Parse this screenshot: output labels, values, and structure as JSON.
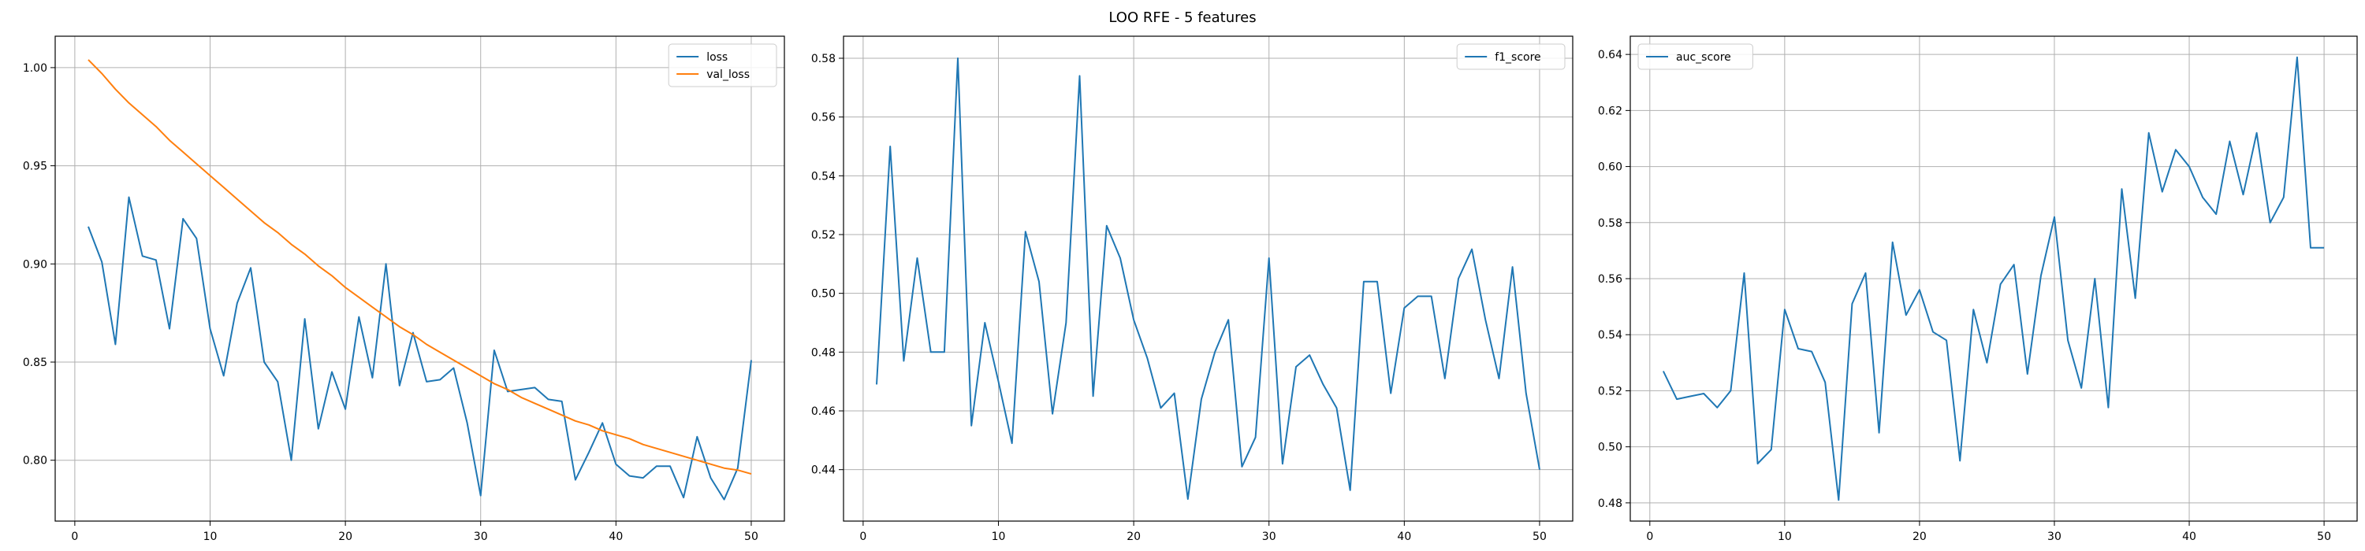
{
  "figure": {
    "title": "LOO RFE - 5 features"
  },
  "chart_data": [
    {
      "type": "line",
      "title": "",
      "xlabel": "",
      "ylabel": "",
      "x": [
        1,
        2,
        3,
        4,
        5,
        6,
        7,
        8,
        9,
        10,
        11,
        12,
        13,
        14,
        15,
        16,
        17,
        18,
        19,
        20,
        21,
        22,
        23,
        24,
        25,
        26,
        27,
        28,
        29,
        30,
        31,
        32,
        33,
        34,
        35,
        36,
        37,
        38,
        39,
        40,
        41,
        42,
        43,
        44,
        45,
        46,
        47,
        48,
        49,
        50
      ],
      "xlim": [
        -1.45,
        52.45
      ],
      "ylim": [
        0.769,
        1.016
      ],
      "xticks": [
        0,
        10,
        20,
        30,
        40,
        50
      ],
      "xtick_labels": [
        "0",
        "10",
        "20",
        "30",
        "40",
        "50"
      ],
      "yticks": [
        0.8,
        0.85,
        0.9,
        0.95,
        1.0
      ],
      "ytick_labels": [
        "0.80",
        "0.85",
        "0.90",
        "0.95",
        "1.00"
      ],
      "grid": true,
      "legend_position": "top-right",
      "series": [
        {
          "name": "loss",
          "color": "#1f77b4",
          "values": [
            0.919,
            0.901,
            0.859,
            0.934,
            0.904,
            0.902,
            0.867,
            0.923,
            0.913,
            0.867,
            0.843,
            0.88,
            0.898,
            0.85,
            0.84,
            0.8,
            0.872,
            0.816,
            0.845,
            0.826,
            0.873,
            0.842,
            0.9,
            0.838,
            0.865,
            0.84,
            0.841,
            0.847,
            0.819,
            0.782,
            0.856,
            0.835,
            0.836,
            0.837,
            0.831,
            0.83,
            0.79,
            0.804,
            0.819,
            0.798,
            0.792,
            0.791,
            0.797,
            0.797,
            0.781,
            0.812,
            0.791,
            0.78,
            0.796,
            0.851
          ]
        },
        {
          "name": "val_loss",
          "color": "#ff7f0e",
          "values": [
            1.004,
            0.997,
            0.989,
            0.982,
            0.976,
            0.97,
            0.963,
            0.957,
            0.951,
            0.945,
            0.939,
            0.933,
            0.927,
            0.921,
            0.916,
            0.91,
            0.905,
            0.899,
            0.894,
            0.888,
            0.883,
            0.878,
            0.873,
            0.868,
            0.864,
            0.859,
            0.855,
            0.851,
            0.847,
            0.843,
            0.839,
            0.836,
            0.832,
            0.829,
            0.826,
            0.823,
            0.82,
            0.818,
            0.815,
            0.813,
            0.811,
            0.808,
            0.806,
            0.804,
            0.802,
            0.8,
            0.798,
            0.796,
            0.795,
            0.793
          ]
        }
      ]
    },
    {
      "type": "line",
      "title": "",
      "xlabel": "",
      "ylabel": "",
      "x": [
        1,
        2,
        3,
        4,
        5,
        6,
        7,
        8,
        9,
        10,
        11,
        12,
        13,
        14,
        15,
        16,
        17,
        18,
        19,
        20,
        21,
        22,
        23,
        24,
        25,
        26,
        27,
        28,
        29,
        30,
        31,
        32,
        33,
        34,
        35,
        36,
        37,
        38,
        39,
        40,
        41,
        42,
        43,
        44,
        45,
        46,
        47,
        48,
        49,
        50
      ],
      "xlim": [
        -1.45,
        52.45
      ],
      "ylim": [
        0.4225,
        0.5875
      ],
      "xticks": [
        0,
        10,
        20,
        30,
        40,
        50
      ],
      "xtick_labels": [
        "0",
        "10",
        "20",
        "30",
        "40",
        "50"
      ],
      "yticks": [
        0.44,
        0.46,
        0.48,
        0.5,
        0.52,
        0.54,
        0.56,
        0.58
      ],
      "ytick_labels": [
        "0.44",
        "0.46",
        "0.48",
        "0.50",
        "0.52",
        "0.54",
        "0.56",
        "0.58"
      ],
      "grid": true,
      "legend_position": "top-right",
      "series": [
        {
          "name": "f1_score",
          "color": "#1f77b4",
          "values": [
            0.469,
            0.55,
            0.477,
            0.512,
            0.48,
            0.48,
            0.58,
            0.455,
            0.49,
            0.47,
            0.449,
            0.521,
            0.504,
            0.459,
            0.49,
            0.574,
            0.465,
            0.523,
            0.512,
            0.491,
            0.478,
            0.461,
            0.466,
            0.43,
            0.464,
            0.48,
            0.491,
            0.441,
            0.451,
            0.512,
            0.442,
            0.475,
            0.479,
            0.469,
            0.461,
            0.433,
            0.504,
            0.504,
            0.466,
            0.495,
            0.499,
            0.499,
            0.471,
            0.505,
            0.515,
            0.491,
            0.471,
            0.509,
            0.466,
            0.44
          ]
        }
      ]
    },
    {
      "type": "line",
      "title": "",
      "xlabel": "",
      "ylabel": "",
      "x": [
        1,
        2,
        3,
        4,
        5,
        6,
        7,
        8,
        9,
        10,
        11,
        12,
        13,
        14,
        15,
        16,
        17,
        18,
        19,
        20,
        21,
        22,
        23,
        24,
        25,
        26,
        27,
        28,
        29,
        30,
        31,
        32,
        33,
        34,
        35,
        36,
        37,
        38,
        39,
        40,
        41,
        42,
        43,
        44,
        45,
        46,
        47,
        48,
        49,
        50
      ],
      "xlim": [
        -1.45,
        52.45
      ],
      "ylim": [
        0.4735,
        0.6465
      ],
      "xticks": [
        0,
        10,
        20,
        30,
        40,
        50
      ],
      "xtick_labels": [
        "0",
        "10",
        "20",
        "30",
        "40",
        "50"
      ],
      "yticks": [
        0.48,
        0.5,
        0.52,
        0.54,
        0.56,
        0.58,
        0.6,
        0.62,
        0.64
      ],
      "ytick_labels": [
        "0.48",
        "0.50",
        "0.52",
        "0.54",
        "0.56",
        "0.58",
        "0.60",
        "0.62",
        "0.64"
      ],
      "grid": true,
      "legend_position": "top-left",
      "series": [
        {
          "name": "auc_score",
          "color": "#1f77b4",
          "values": [
            0.527,
            0.517,
            0.518,
            0.519,
            0.514,
            0.52,
            0.562,
            0.494,
            0.499,
            0.549,
            0.535,
            0.534,
            0.523,
            0.481,
            0.551,
            0.562,
            0.505,
            0.573,
            0.547,
            0.556,
            0.541,
            0.538,
            0.495,
            0.549,
            0.53,
            0.558,
            0.565,
            0.526,
            0.561,
            0.582,
            0.538,
            0.521,
            0.56,
            0.514,
            0.592,
            0.553,
            0.612,
            0.591,
            0.606,
            0.6,
            0.589,
            0.583,
            0.609,
            0.59,
            0.612,
            0.58,
            0.589,
            0.639,
            0.571,
            0.571
          ]
        }
      ]
    }
  ]
}
